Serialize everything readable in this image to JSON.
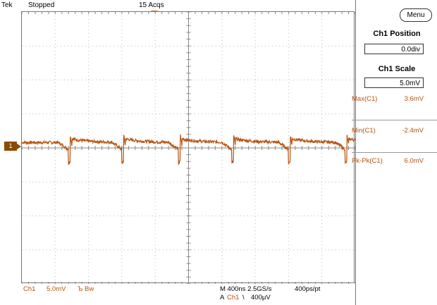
{
  "status_bar": {
    "brand": "Tek",
    "state": "Stopped",
    "acqs": "15 Acqs"
  },
  "sidebar": {
    "menu_label": "Menu",
    "ch1_position_title": "Ch1 Position",
    "ch1_position_value": "0.0div",
    "ch1_scale_title": "Ch1 Scale",
    "ch1_scale_value": "5.0mV",
    "measurements": [
      {
        "label": "Max(C1)",
        "value": "3.6mV"
      },
      {
        "label": "Min(C1)",
        "value": "-2.4mV"
      },
      {
        "label": "Pk-Pk(C1)",
        "value": "6.0mV"
      }
    ]
  },
  "channel_marker": "1",
  "bottom_bar": {
    "channel": "Ch1",
    "scale": "5.0mV",
    "coupling": "Ъ",
    "bw": "Bw",
    "timebase": "M 400ns 2.5GS/s",
    "record": "400ps/pt",
    "trigger_prefix": "A",
    "trigger_source": "Ch1",
    "trigger_slope": "\\",
    "trigger_level": "400μV"
  },
  "colors": {
    "trace": "#b5520f",
    "measurement_text": "#b5520f",
    "trigger_marker": "#e07020"
  },
  "waveform": {
    "volts_per_div_mV": 5.0,
    "time_per_div_ns": 400,
    "spike_times_div": [
      1.45,
      3.05,
      4.75,
      6.35,
      8.05,
      9.75
    ],
    "baseline_mV": 0.8,
    "spike_min_mV": -2.4,
    "spike_max_mV": 3.6
  }
}
